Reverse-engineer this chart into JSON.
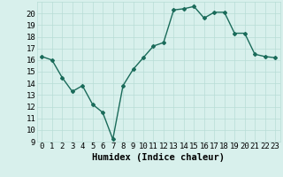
{
  "x": [
    0,
    1,
    2,
    3,
    4,
    5,
    6,
    7,
    8,
    9,
    10,
    11,
    12,
    13,
    14,
    15,
    16,
    17,
    18,
    19,
    20,
    21,
    22,
    23
  ],
  "y": [
    16.3,
    16.0,
    14.5,
    13.3,
    13.8,
    12.2,
    11.5,
    9.2,
    13.8,
    15.2,
    16.2,
    17.2,
    17.5,
    20.3,
    20.4,
    20.6,
    19.6,
    20.1,
    20.1,
    18.3,
    18.3,
    16.5,
    16.3,
    16.2
  ],
  "title": "",
  "xlabel": "Humidex (Indice chaleur)",
  "ylabel": "",
  "xlim": [
    -0.5,
    23.5
  ],
  "ylim": [
    9,
    21
  ],
  "yticks": [
    9,
    10,
    11,
    12,
    13,
    14,
    15,
    16,
    17,
    18,
    19,
    20
  ],
  "xticks": [
    0,
    1,
    2,
    3,
    4,
    5,
    6,
    7,
    8,
    9,
    10,
    11,
    12,
    13,
    14,
    15,
    16,
    17,
    18,
    19,
    20,
    21,
    22,
    23
  ],
  "line_color": "#1a6b5a",
  "marker": "D",
  "markersize": 2.0,
  "linewidth": 1.0,
  "bg_color": "#d8f0ec",
  "grid_color": "#b8dcd6",
  "xlabel_fontsize": 7.5,
  "tick_fontsize": 6.5
}
